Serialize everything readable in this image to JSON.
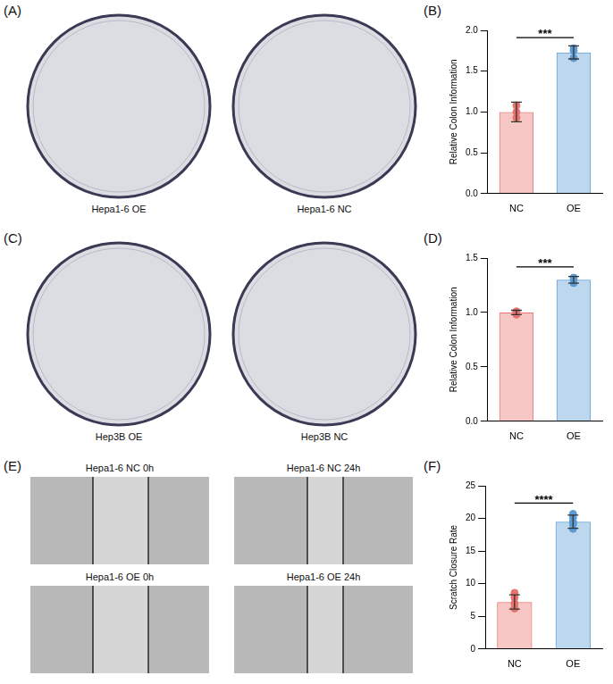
{
  "image_panels": [
    {
      "letter": "(A)",
      "captions": [
        "Hepa1-6 OE",
        "Hepa1-6 NC"
      ]
    },
    {
      "letter": "(C)",
      "captions": [
        "Hep3B OE",
        "Hep3B NC"
      ]
    },
    {
      "letter": "(E)",
      "captions": [
        "Hepa1-6 NC 0h",
        "Hepa1-6 NC 24h",
        "Hepa1-6 OE 0h",
        "Hepa1-6 OE 24h"
      ]
    }
  ],
  "chart_data": [
    {
      "letter": "(B)",
      "type": "bar",
      "categories": [
        "NC",
        "OE"
      ],
      "values": [
        1.0,
        1.73
      ],
      "errors": [
        0.12,
        0.08
      ],
      "points": [
        [
          0.93,
          1.0,
          1.08
        ],
        [
          1.66,
          1.78,
          1.75
        ]
      ],
      "colors": [
        "#e8726e",
        "#5b9bd5"
      ],
      "y_label": "Relative Colon Information",
      "annotation": "***",
      "ylim": [
        0,
        2
      ],
      "yticks": [
        {
          "value": 0,
          "label": "0.0"
        },
        {
          "value": 0.5,
          "label": "0.5"
        },
        {
          "value": 1,
          "label": "1.0"
        },
        {
          "value": 1.5,
          "label": "1.5"
        },
        {
          "value": 2,
          "label": "2.0"
        }
      ],
      "grid": false
    },
    {
      "letter": "(D)",
      "type": "bar",
      "categories": [
        "NC",
        "OE"
      ],
      "values": [
        1.0,
        1.3
      ],
      "errors": [
        0.02,
        0.03
      ],
      "points": [
        [
          0.98,
          1.01,
          1.0
        ],
        [
          1.27,
          1.32,
          1.3
        ]
      ],
      "colors": [
        "#e8726e",
        "#5b9bd5"
      ],
      "y_label": "Relative Colon Information",
      "annotation": "***",
      "ylim": [
        0,
        1.5
      ],
      "yticks": [
        {
          "value": 0,
          "label": "0.0"
        },
        {
          "value": 0.5,
          "label": "0.5"
        },
        {
          "value": 1,
          "label": "1.0"
        },
        {
          "value": 1.5,
          "label": "1.5"
        }
      ],
      "grid": false
    },
    {
      "letter": "(F)",
      "type": "bar",
      "categories": [
        "NC",
        "OE"
      ],
      "values": [
        7.2,
        19.5
      ],
      "errors": [
        1.1,
        1.0
      ],
      "points": [
        [
          8.6,
          7.9,
          7.0,
          6.2,
          6.3
        ],
        [
          20.7,
          20.1,
          19.4,
          18.4,
          19.1
        ]
      ],
      "colors": [
        "#e8726e",
        "#5b9bd5"
      ],
      "y_label": "Scratch Closure Rate",
      "annotation": "****",
      "ylim": [
        0,
        25
      ],
      "yticks": [
        0,
        5,
        10,
        15,
        20,
        25
      ],
      "grid": false
    }
  ]
}
